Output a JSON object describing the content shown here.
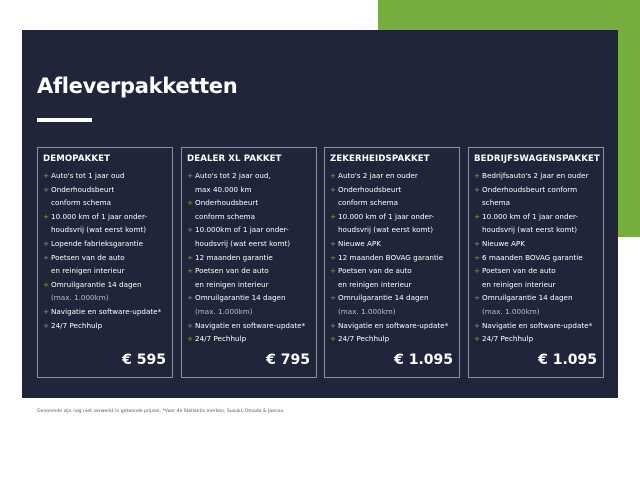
{
  "title": "Afleverpakketten",
  "colors": {
    "navy": "#21253a",
    "green": "#76ad3f"
  },
  "packages": [
    {
      "name": "DEMOPAKKET",
      "price": "€ 595",
      "items": [
        {
          "t": "Auto's tot 1 jaar oud",
          "b": true
        },
        {
          "t": "Onderhoudsbeurt",
          "b": true
        },
        {
          "t": "conform schema"
        },
        {
          "t": "10.000 km of 1 jaar onder-",
          "b": true
        },
        {
          "t": "houdsvrij (wat eerst komt)"
        },
        {
          "t": "Lopende fabrieksgarantie",
          "b": true
        },
        {
          "t": "Poetsen van de auto",
          "b": true
        },
        {
          "t": "en reinigen interieur"
        },
        {
          "t": "Omruilgarantie 14 dagen",
          "b": true
        },
        {
          "t": "(max. 1.000km)",
          "m": true
        },
        {
          "t": "Navigatie en software-update*",
          "b": true
        },
        {
          "t": "24/7 Pechhulp",
          "b": true
        }
      ]
    },
    {
      "name": "DEALER XL PAKKET",
      "price": "€ 795",
      "items": [
        {
          "t": "Auto's tot 2 jaar oud,",
          "b": true
        },
        {
          "t": "max 40.000 km"
        },
        {
          "t": "Onderhoudsbeurt",
          "b": true
        },
        {
          "t": "conform schema"
        },
        {
          "t": "10.000km of 1 jaar onder-",
          "b": true
        },
        {
          "t": "houdsvrij (wat eerst komt)"
        },
        {
          "t": "12 maanden garantie",
          "b": true
        },
        {
          "t": "Poetsen van de auto",
          "b": true
        },
        {
          "t": "en reinigen interieur"
        },
        {
          "t": "Omruilgarantie 14 dagen",
          "b": true
        },
        {
          "t": "(max. 1.000km)",
          "m": true
        },
        {
          "t": "Navigatie en software-update*",
          "b": true
        },
        {
          "t": "24/7 Pechhulp",
          "b": true
        }
      ]
    },
    {
      "name": "ZEKERHEIDSPAKKET",
      "price": "€ 1.095",
      "items": [
        {
          "t": "Auto's 2 jaar en ouder",
          "b": true
        },
        {
          "t": "Onderhoudsbeurt",
          "b": true
        },
        {
          "t": "conform schema"
        },
        {
          "t": "10.000 km of 1 jaar onder-",
          "b": true
        },
        {
          "t": "houdsvrij (wat eerst komt)"
        },
        {
          "t": "Nieuwe APK",
          "b": true
        },
        {
          "t": "12 maanden BOVAG garantie",
          "b": true
        },
        {
          "t": "Poetsen van de auto",
          "b": true
        },
        {
          "t": "en reinigen interieur"
        },
        {
          "t": "Omruilgarantie 14 dagen",
          "b": true
        },
        {
          "t": "(max. 1.000km)",
          "m": true
        },
        {
          "t": "Navigatie en software-update*",
          "b": true
        },
        {
          "t": "24/7 Pechhulp",
          "b": true
        }
      ]
    },
    {
      "name": "BEDRIJFSWAGENSPAKKET",
      "price": "€ 1.095",
      "items": [
        {
          "t": "Bedrijfsauto's 2 jaar en ouder",
          "b": true
        },
        {
          "t": "Onderhoudsbeurt conform",
          "b": true
        },
        {
          "t": "schema"
        },
        {
          "t": "10.000 km of 1 jaar onder-",
          "b": true
        },
        {
          "t": "houdsvrij (wat eerst komt)"
        },
        {
          "t": "Nieuwe APK",
          "b": true
        },
        {
          "t": "6 maanden BOVAG garantie",
          "b": true
        },
        {
          "t": "Poetsen van de auto",
          "b": true
        },
        {
          "t": "en reinigen interieur"
        },
        {
          "t": "Omruilgarantie 14 dagen",
          "b": true
        },
        {
          "t": "(max. 1.000km)",
          "m": true
        },
        {
          "t": "Navigatie en software-update*",
          "b": true
        },
        {
          "t": "24/7 Pechhulp",
          "b": true
        }
      ]
    }
  ],
  "footnote": "Genoemde zijn nog niet verwerkt in getoonde prijzen. *Voor de Stellantis merken, Suzuki, Omoda & Jaecoo."
}
